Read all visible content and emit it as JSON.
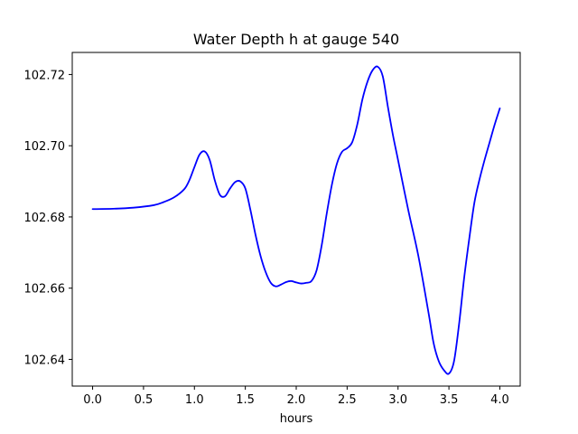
{
  "chart_data": {
    "type": "line",
    "title": "Water Depth h at gauge 540",
    "xlabel": "hours",
    "ylabel": "",
    "xlim": [
      -0.2,
      4.2
    ],
    "ylim": [
      102.6325,
      102.7262
    ],
    "x_ticks": [
      0.0,
      0.5,
      1.0,
      1.5,
      2.0,
      2.5,
      3.0,
      3.5,
      4.0
    ],
    "x_tick_labels": [
      "0.0",
      "0.5",
      "1.0",
      "1.5",
      "2.0",
      "2.5",
      "3.0",
      "3.5",
      "4.0"
    ],
    "y_ticks": [
      102.64,
      102.66,
      102.68,
      102.7,
      102.72
    ],
    "y_tick_labels": [
      "102.64",
      "102.66",
      "102.68",
      "102.70",
      "102.72"
    ],
    "grid": false,
    "legend": "none",
    "series": [
      {
        "color": "#0000ff",
        "x": [
          0.0,
          0.2,
          0.4,
          0.6,
          0.7,
          0.8,
          0.9,
          0.95,
          1.0,
          1.05,
          1.1,
          1.15,
          1.2,
          1.25,
          1.3,
          1.35,
          1.4,
          1.45,
          1.5,
          1.55,
          1.6,
          1.65,
          1.7,
          1.75,
          1.8,
          1.85,
          1.9,
          1.95,
          2.0,
          2.05,
          2.1,
          2.15,
          2.2,
          2.25,
          2.3,
          2.35,
          2.4,
          2.45,
          2.5,
          2.55,
          2.6,
          2.65,
          2.7,
          2.75,
          2.8,
          2.85,
          2.9,
          2.95,
          3.0,
          3.1,
          3.2,
          3.3,
          3.35,
          3.4,
          3.45,
          3.5,
          3.55,
          3.6,
          3.65,
          3.7,
          3.75,
          3.8,
          3.85,
          3.9,
          3.95,
          4.0
        ],
        "y": [
          102.6822,
          102.6823,
          102.6826,
          102.6833,
          102.6842,
          102.6855,
          102.6878,
          102.6903,
          102.694,
          102.6975,
          102.6984,
          102.696,
          102.6903,
          102.6862,
          102.6858,
          102.688,
          102.6898,
          102.69,
          102.688,
          102.682,
          102.675,
          102.669,
          102.6645,
          102.6615,
          102.6605,
          102.661,
          102.6617,
          102.662,
          102.6616,
          102.6613,
          102.6615,
          102.662,
          102.665,
          102.672,
          102.681,
          102.689,
          102.695,
          102.6983,
          102.6993,
          102.701,
          102.706,
          102.713,
          102.718,
          102.7212,
          102.7222,
          102.7195,
          102.711,
          102.703,
          102.696,
          102.682,
          102.669,
          102.653,
          102.6445,
          102.6395,
          102.637,
          102.636,
          102.6395,
          102.65,
          102.663,
          102.674,
          102.684,
          102.6905,
          102.696,
          102.701,
          102.706,
          102.7105
        ]
      }
    ]
  }
}
